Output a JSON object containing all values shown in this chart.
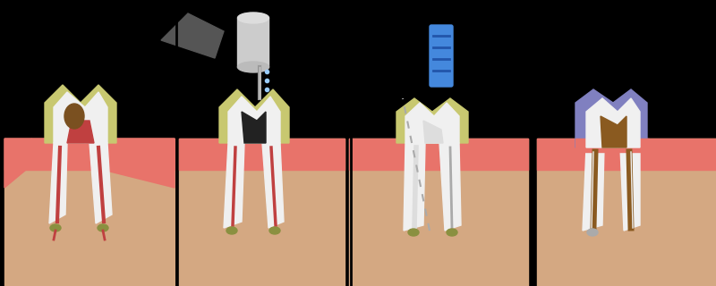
{
  "background_color": "#000000",
  "figure_width": 8.0,
  "figure_height": 3.2,
  "dpi": 100,
  "gum_color": "#e8736a",
  "bone_color": "#d4a882",
  "tooth_white": "#f0f0f0",
  "tooth_yellow": "#c8c870",
  "decay_color": "#7a5020",
  "pulp_color": "#c04040",
  "root_canal_color": "#c04040",
  "olive_color": "#8a9040",
  "crown_color": "#8080c0",
  "fill_color": "#8a5a20",
  "drill_gray": "#888888",
  "drill_dark": "#444444",
  "wire_blue": "#4488dd",
  "wire_gray": "#aaaaaa"
}
